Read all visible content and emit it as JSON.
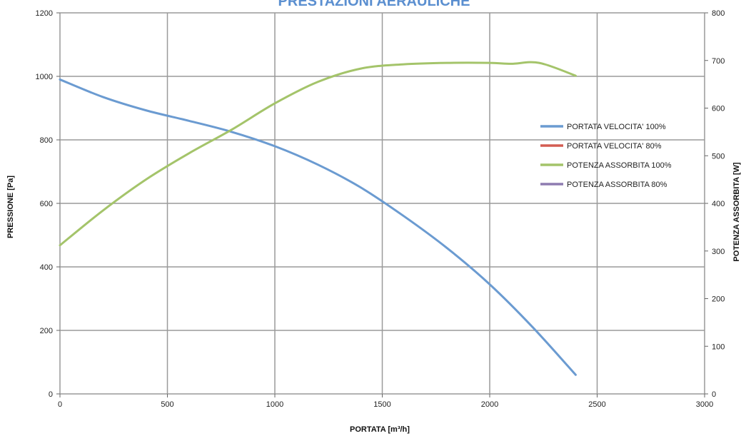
{
  "chart_data": {
    "type": "line",
    "title": "PRESTAZIONI AERAULICHE",
    "xlabel": "PORTATA [m³/h]",
    "ylabel": "PRESSIONE [Pa]",
    "y2label": "POTENZA ASSORBITA [W]",
    "xlim": [
      0,
      3000
    ],
    "ylim": [
      0,
      1200
    ],
    "y2lim": [
      0,
      800
    ],
    "x_ticks": [
      "0",
      "500",
      "1000",
      "1500",
      "2000",
      "2500",
      "3000"
    ],
    "y_ticks": [
      "0",
      "200",
      "400",
      "600",
      "800",
      "1000",
      "1200"
    ],
    "y2_ticks": [
      "0",
      "100",
      "200",
      "300",
      "400",
      "500",
      "600",
      "700",
      "800"
    ],
    "grid": true,
    "legend_position": "right",
    "series": [
      {
        "name": "PORTATA VELOCITA' 100%",
        "axis": "left",
        "color": "#6b9bd1",
        "x": [
          0,
          200,
          400,
          600,
          800,
          1000,
          1200,
          1400,
          1600,
          1800,
          2000,
          2200,
          2400
        ],
        "y": [
          990,
          935,
          893,
          860,
          825,
          780,
          722,
          650,
          560,
          460,
          345,
          210,
          60
        ]
      },
      {
        "name": "PORTATA VELOCITA' 80%",
        "axis": "left",
        "color": "#d45d52",
        "x": [],
        "y": []
      },
      {
        "name": "POTENZA ASSORBITA 100%",
        "axis": "right",
        "color": "#a4c46a",
        "x": [
          0,
          200,
          400,
          600,
          800,
          1000,
          1200,
          1400,
          1600,
          1800,
          2000,
          2100,
          2230,
          2400
        ],
        "y": [
          312,
          385,
          450,
          505,
          555,
          610,
          655,
          683,
          692,
          695,
          695,
          693,
          695,
          668
        ]
      },
      {
        "name": "POTENZA ASSORBITA 80%",
        "axis": "right",
        "color": "#8e7cb0",
        "x": [],
        "y": []
      }
    ]
  }
}
